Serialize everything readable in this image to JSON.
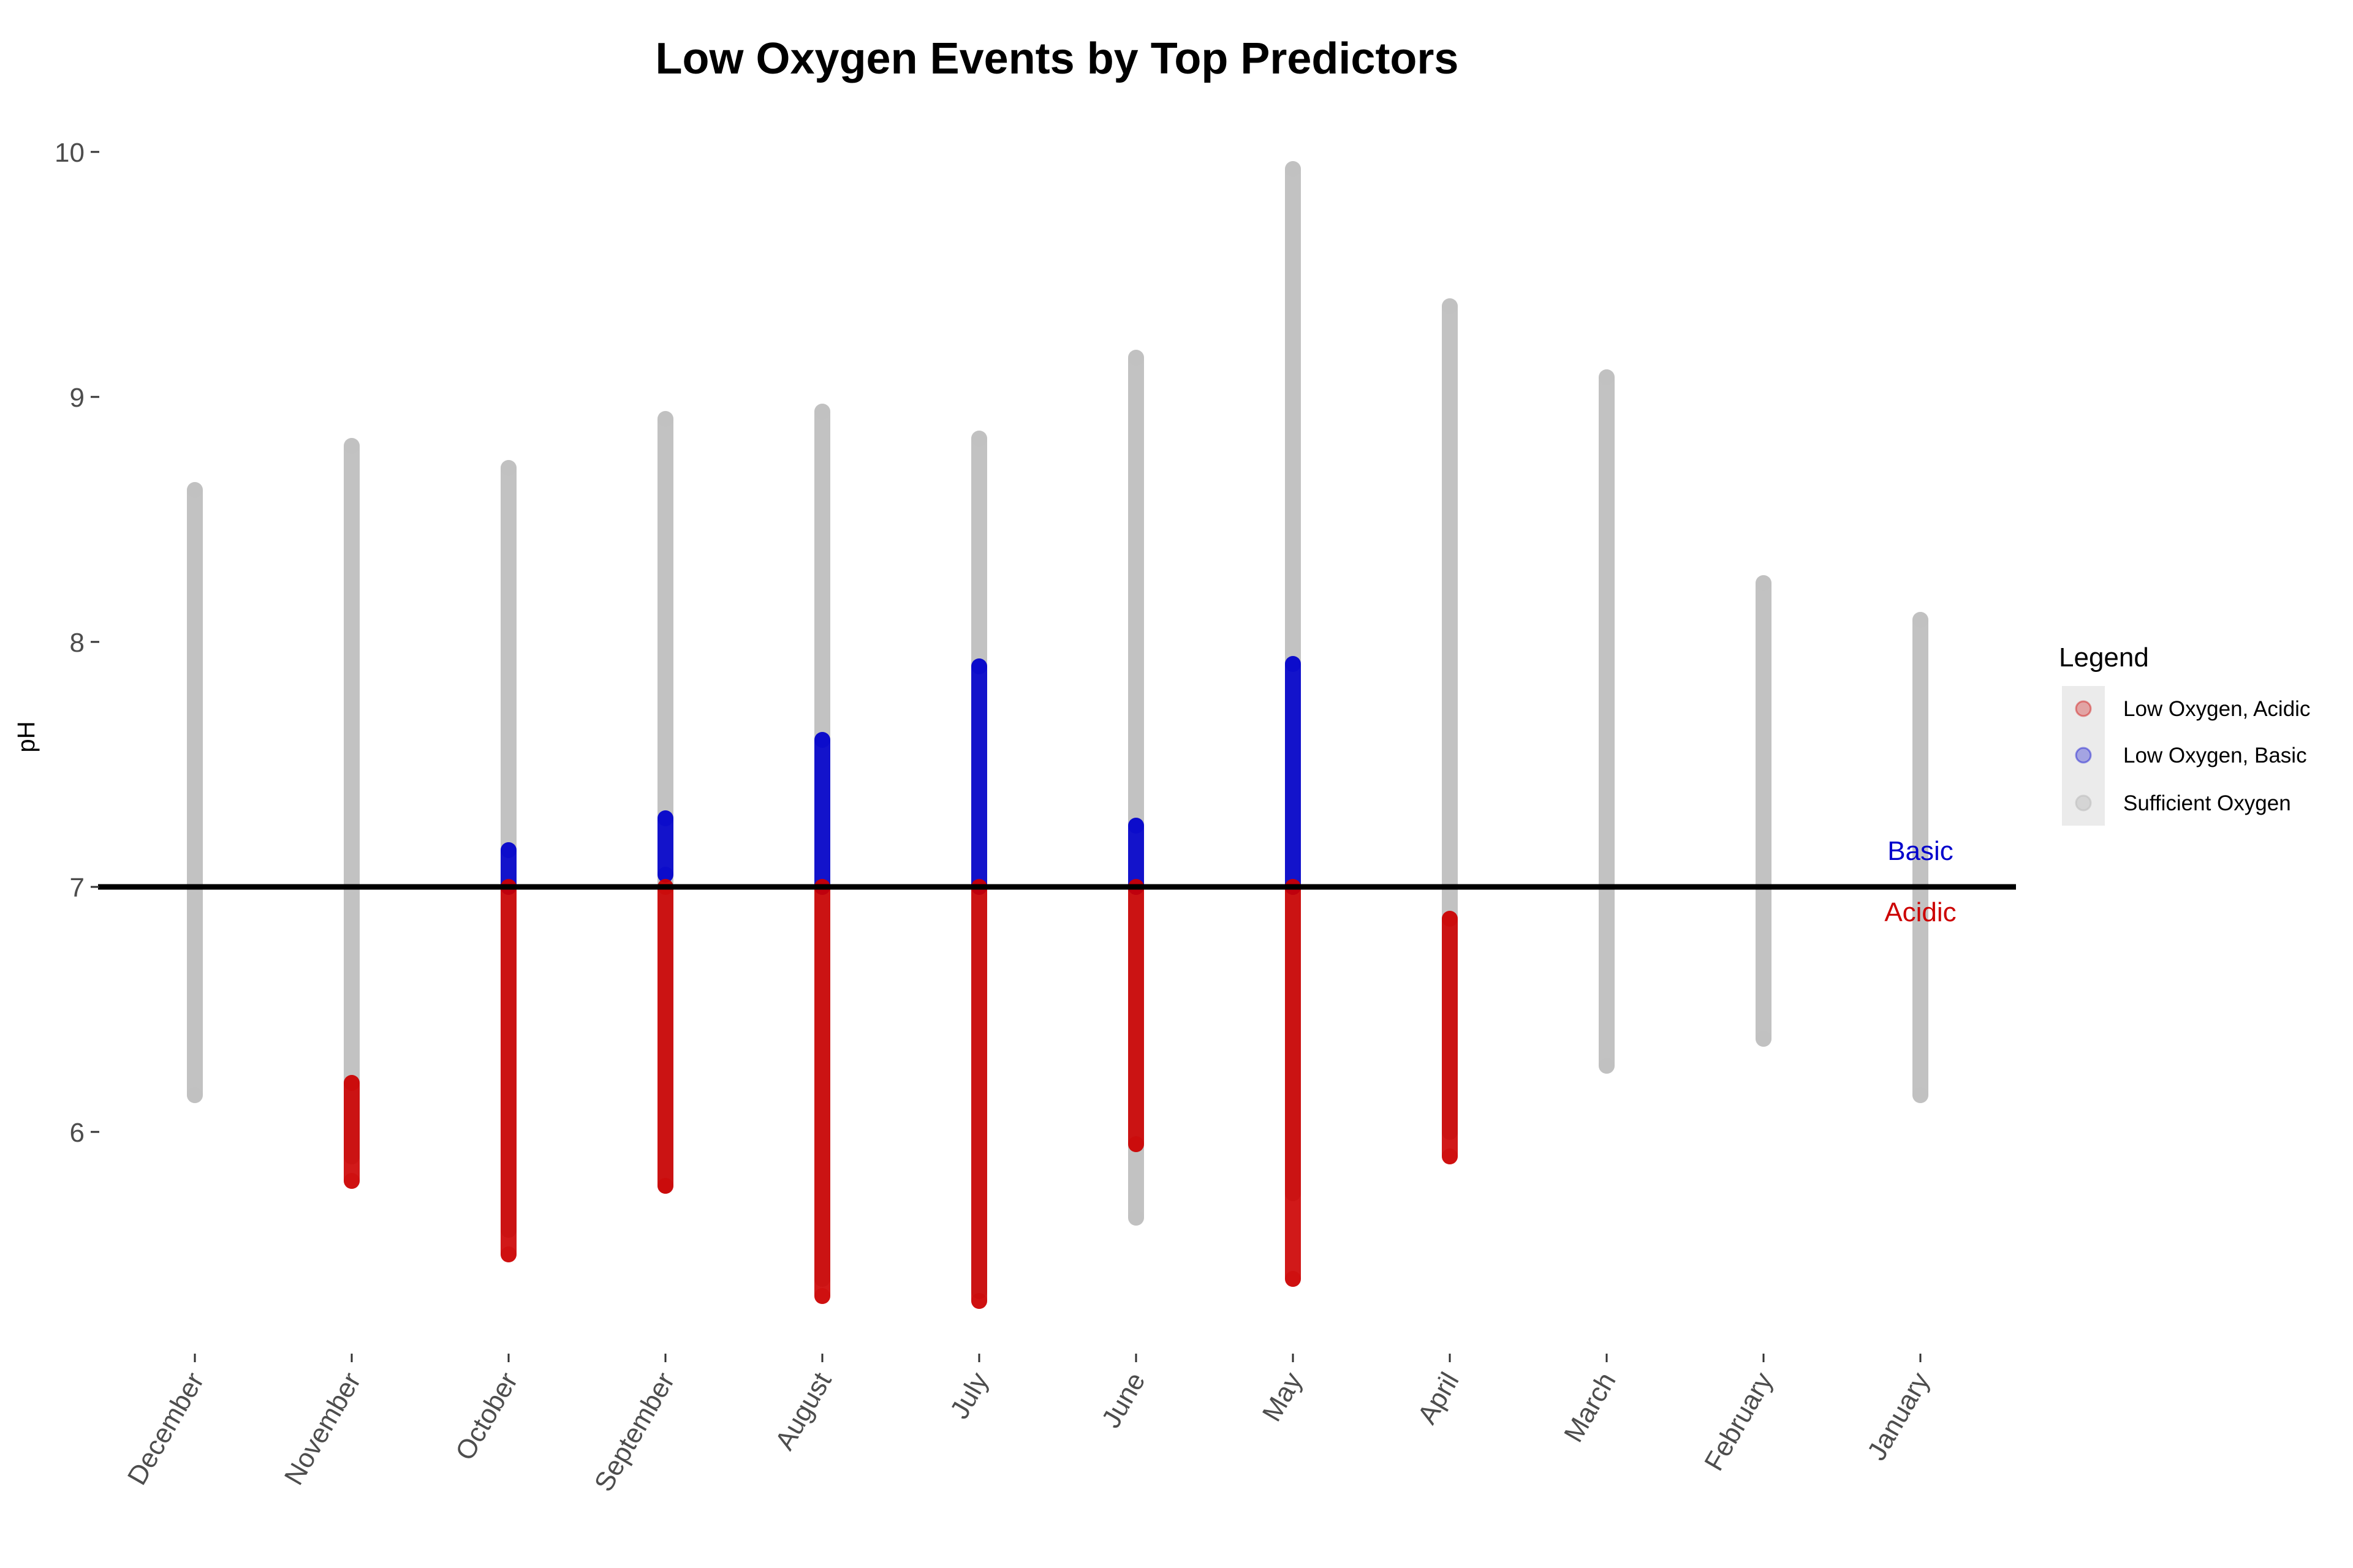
{
  "chart_data": {
    "type": "scatter",
    "title": "Low Oxygen Events by Top Predictors",
    "xlabel": "",
    "ylabel": "pH",
    "ylim": [
      5.1,
      10.25
    ],
    "yticks": [
      6,
      7,
      8,
      9,
      10
    ],
    "categories": [
      "December",
      "November",
      "October",
      "September",
      "August",
      "July",
      "June",
      "May",
      "April",
      "March",
      "February",
      "January"
    ],
    "grid": false,
    "legend": {
      "title": "Legend",
      "placement": "right",
      "entries": [
        {
          "label": "Low Oxygen, Acidic",
          "color": "#cc0000"
        },
        {
          "label": "Low Oxygen, Basic",
          "color": "#0000cc"
        },
        {
          "label": "Sufficient Oxygen",
          "color": "#bfbfbf"
        }
      ]
    },
    "reference_line": {
      "y": 7,
      "color": "#000000"
    },
    "annotations": [
      {
        "text": "Basic",
        "category": "January",
        "y": 7.15,
        "color": "#0000cc"
      },
      {
        "text": "Acidic",
        "category": "January",
        "y": 6.9,
        "color": "#cc0000"
      }
    ],
    "series": [
      {
        "name": "Sufficient Oxygen",
        "color": "#bfbfbf",
        "ranges": [
          {
            "category": "December",
            "min": 6.15,
            "max": 8.62
          },
          {
            "category": "November",
            "min": 5.9,
            "max": 8.8
          },
          {
            "category": "October",
            "min": 5.6,
            "max": 8.71
          },
          {
            "category": "September",
            "min": 5.78,
            "max": 8.91
          },
          {
            "category": "August",
            "min": 5.4,
            "max": 8.94
          },
          {
            "category": "July",
            "min": 5.35,
            "max": 8.83
          },
          {
            "category": "June",
            "min": 5.65,
            "max": 9.16
          },
          {
            "category": "May",
            "min": 5.75,
            "max": 9.93
          },
          {
            "category": "April",
            "min": 6.0,
            "max": 9.37
          },
          {
            "category": "March",
            "min": 6.27,
            "max": 9.08
          },
          {
            "category": "February",
            "min": 6.38,
            "max": 8.24
          },
          {
            "category": "January",
            "min": 6.15,
            "max": 8.09
          }
        ]
      },
      {
        "name": "Low Oxygen, Basic",
        "color": "#0000cc",
        "ranges": [
          {
            "category": "October",
            "min": 7.0,
            "max": 7.15
          },
          {
            "category": "September",
            "min": 7.05,
            "max": 7.28
          },
          {
            "category": "August",
            "min": 7.0,
            "max": 7.6
          },
          {
            "category": "July",
            "min": 7.0,
            "max": 7.9
          },
          {
            "category": "June",
            "min": 7.0,
            "max": 7.25
          },
          {
            "category": "May",
            "min": 7.0,
            "max": 7.91
          }
        ]
      },
      {
        "name": "Low Oxygen, Acidic",
        "color": "#cc0000",
        "ranges": [
          {
            "category": "November",
            "min": 5.8,
            "max": 6.2
          },
          {
            "category": "October",
            "min": 5.5,
            "max": 7.0
          },
          {
            "category": "September",
            "min": 5.78,
            "max": 7.0
          },
          {
            "category": "August",
            "min": 5.33,
            "max": 7.0
          },
          {
            "category": "July",
            "min": 5.31,
            "max": 7.0
          },
          {
            "category": "June",
            "min": 5.95,
            "max": 7.0
          },
          {
            "category": "May",
            "min": 5.4,
            "max": 7.0
          },
          {
            "category": "April",
            "min": 5.9,
            "max": 6.87
          }
        ]
      }
    ]
  }
}
